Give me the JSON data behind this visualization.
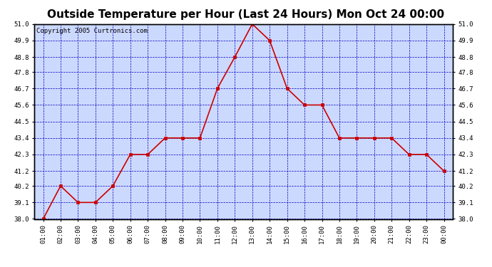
{
  "title": "Outside Temperature per Hour (Last 24 Hours) Mon Oct 24 00:00",
  "copyright": "Copyright 2005 Curtronics.com",
  "hours": [
    "01:00",
    "02:00",
    "03:00",
    "04:00",
    "05:00",
    "06:00",
    "07:00",
    "08:00",
    "09:00",
    "10:00",
    "11:00",
    "12:00",
    "13:00",
    "14:00",
    "15:00",
    "16:00",
    "17:00",
    "18:00",
    "19:00",
    "20:00",
    "21:00",
    "22:00",
    "23:00",
    "00:00"
  ],
  "temps": [
    38.0,
    40.2,
    39.1,
    39.1,
    40.2,
    42.3,
    42.3,
    43.4,
    43.4,
    43.4,
    46.7,
    48.8,
    51.0,
    49.9,
    46.7,
    45.6,
    45.6,
    43.4,
    43.4,
    43.4,
    43.4,
    42.3,
    42.3,
    41.2
  ],
  "line_color": "#cc0000",
  "marker_color": "#cc0000",
  "bg_color": "#ccd9ff",
  "grid_color": "#0000bb",
  "border_color": "#000000",
  "title_color": "#000000",
  "ylim_min": 38.0,
  "ylim_max": 51.0,
  "yticks": [
    38.0,
    39.1,
    40.2,
    41.2,
    42.3,
    43.4,
    44.5,
    45.6,
    46.7,
    47.8,
    48.8,
    49.9,
    51.0
  ],
  "title_fontsize": 11,
  "copyright_fontsize": 6.5,
  "tick_fontsize": 6.5
}
